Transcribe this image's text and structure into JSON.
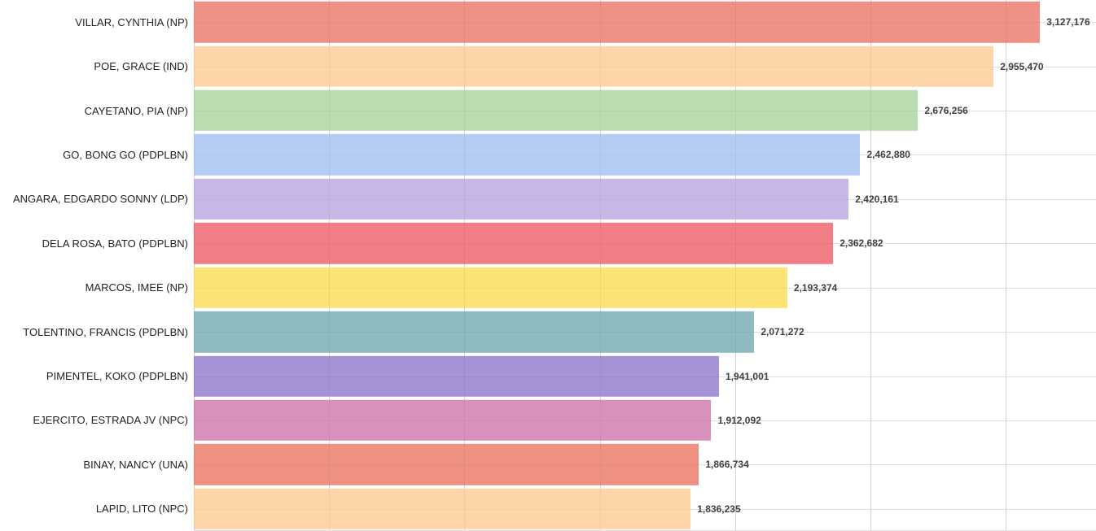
{
  "chart_data": {
    "type": "bar",
    "orientation": "horizontal",
    "title": "",
    "xlabel": "",
    "ylabel": "",
    "legend_position": "none",
    "grid": true,
    "x_axis": {
      "min": 0,
      "max": 3334000,
      "gridline_interval": 500000,
      "tick_labels_visible": false
    },
    "value_label_position": "outside-end",
    "categories": [
      "VILLAR, CYNTHIA (NP)",
      "POE, GRACE (IND)",
      "CAYETANO, PIA (NP)",
      "GO, BONG GO (PDPLBN)",
      "ANGARA, EDGARDO SONNY (LDP)",
      "DELA ROSA, BATO (PDPLBN)",
      "MARCOS, IMEE (NP)",
      "TOLENTINO, FRANCIS (PDPLBN)",
      "PIMENTEL, KOKO (PDPLBN)",
      "EJERCITO, ESTRADA JV (NPC)",
      "BINAY, NANCY (UNA)",
      "LAPID, LITO (NPC)"
    ],
    "values": [
      3127176,
      2955470,
      2676256,
      2462880,
      2420161,
      2362682,
      2193374,
      2071272,
      1941001,
      1912092,
      1866734,
      1836235
    ],
    "value_labels": [
      "3,127,176",
      "2,955,470",
      "2,676,256",
      "2,462,880",
      "2,420,161",
      "2,362,682",
      "2,193,374",
      "2,071,272",
      "1,941,001",
      "1,912,092",
      "1,866,734",
      "1,836,235"
    ],
    "bar_colors": [
      "#EE9286",
      "#FDD5A9",
      "#BBDCAE",
      "#B5CDF4",
      "#C8B7E6",
      "#F17E86",
      "#FBE376",
      "#8DBBC0",
      "#A692D5",
      "#D792BB",
      "#EE9181",
      "#FDD5A9"
    ]
  },
  "styles": {
    "background_color": "#ffffff",
    "gridline_color": "#dfdfdf",
    "category_label_color": "#222222",
    "value_label_color": "#404040"
  }
}
